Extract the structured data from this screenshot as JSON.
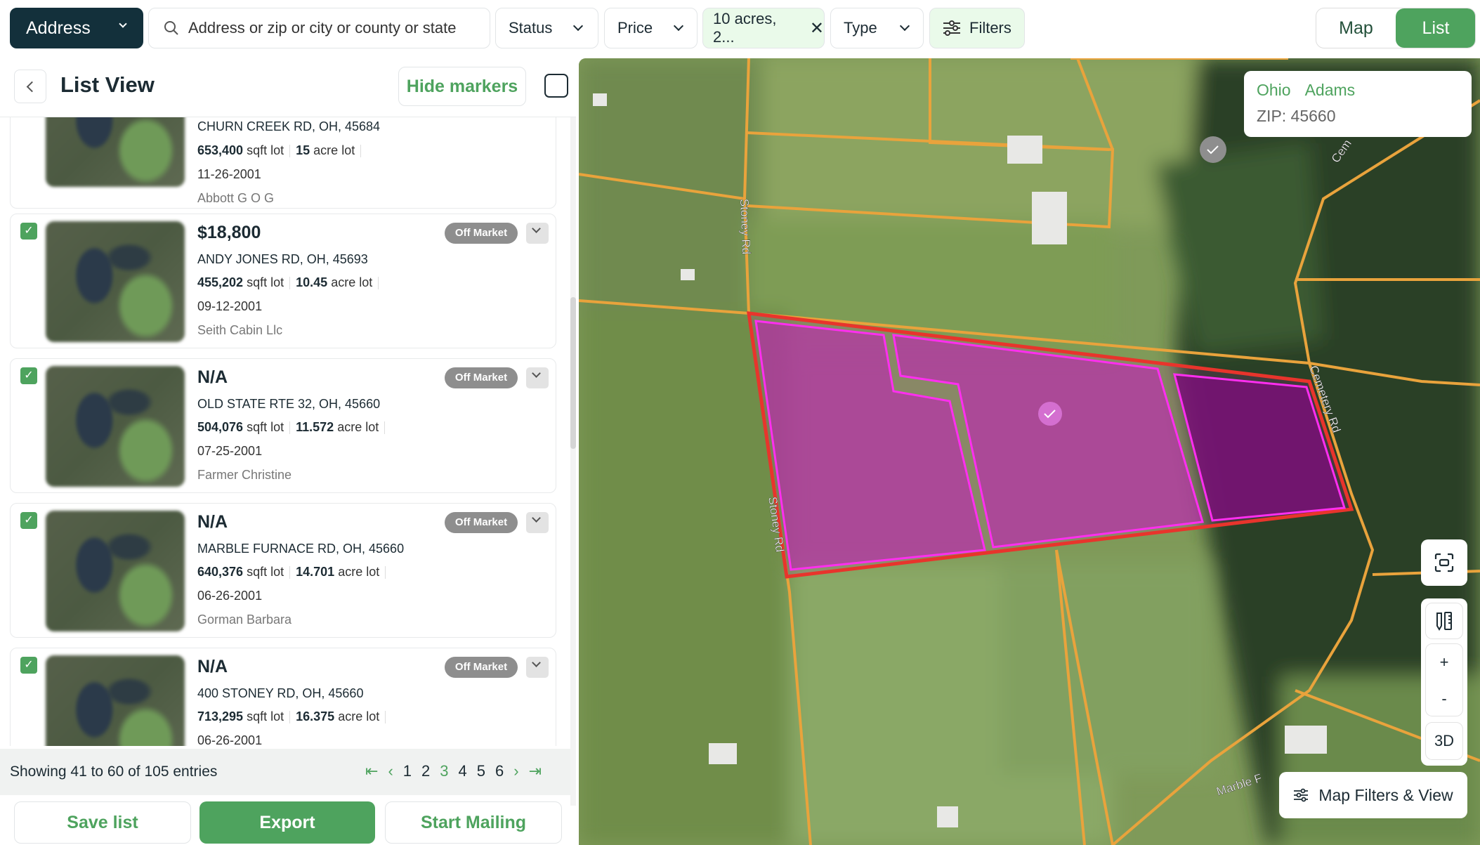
{
  "toolbar": {
    "address_label": "Address",
    "search_placeholder": "Address or zip or city or county or state",
    "status_label": "Status",
    "price_label": "Price",
    "acres_chip": "10 acres, 2...",
    "type_label": "Type",
    "filters_label": "Filters",
    "map_toggle": "Map",
    "list_toggle": "List",
    "active_view": "List"
  },
  "list": {
    "title": "List View",
    "hide_markers": "Hide markers",
    "cards": [
      {
        "price": "",
        "address": "CHURN CREEK RD, OH, 45684",
        "sqft": "653,400",
        "sqft_unit": "sqft lot",
        "acres": "15",
        "acres_unit": "acre lot",
        "date": "11-26-2001",
        "owner": "Abbott G O G",
        "status": "",
        "checked": false
      },
      {
        "price": "$18,800",
        "address": "ANDY JONES RD, OH, 45693",
        "sqft": "455,202",
        "sqft_unit": "sqft lot",
        "acres": "10.45",
        "acres_unit": "acre lot",
        "date": "09-12-2001",
        "owner": "Seith Cabin Llc",
        "status": "Off Market",
        "checked": true
      },
      {
        "price": "N/A",
        "address": "OLD STATE RTE 32, OH, 45660",
        "sqft": "504,076",
        "sqft_unit": "sqft lot",
        "acres": "11.572",
        "acres_unit": "acre lot",
        "date": "07-25-2001",
        "owner": "Farmer Christine",
        "status": "Off Market",
        "checked": true
      },
      {
        "price": "N/A",
        "address": "MARBLE FURNACE RD, OH, 45660",
        "sqft": "640,376",
        "sqft_unit": "sqft lot",
        "acres": "14.701",
        "acres_unit": "acre lot",
        "date": "06-26-2001",
        "owner": "Gorman Barbara",
        "status": "Off Market",
        "checked": true
      },
      {
        "price": "N/A",
        "address": "400 STONEY RD, OH, 45660",
        "sqft": "713,295",
        "sqft_unit": "sqft lot",
        "acres": "16.375",
        "acres_unit": "acre lot",
        "date": "06-26-2001",
        "owner": "",
        "status": "Off Market",
        "checked": true
      }
    ]
  },
  "pagination": {
    "summary": "Showing 41 to 60 of 105 entries",
    "pages": [
      "1",
      "2",
      "3",
      "4",
      "5",
      "6"
    ],
    "current": "3"
  },
  "actions": {
    "save": "Save list",
    "export": "Export",
    "mailing": "Start Mailing"
  },
  "map": {
    "info": {
      "state": "Ohio",
      "county": "Adams",
      "zip": "ZIP: 45660"
    },
    "road_labels": {
      "stoney_top": "Stoney Rd",
      "stoney_bottom": "Stoney Rd",
      "cemetery": "Cemetery Rd",
      "cemetery_top": "Cem",
      "marble": "Marble F"
    },
    "controls": {
      "zoom_in": "+",
      "zoom_out": "-",
      "three_d": "3D",
      "filters_view": "Map Filters & View"
    }
  },
  "colors": {
    "accent": "#4ea35e",
    "dark": "#13303b",
    "parcel_outline": "#e8342c",
    "parcel_fill": "#c21fb8",
    "roads": "#e9a33c"
  }
}
